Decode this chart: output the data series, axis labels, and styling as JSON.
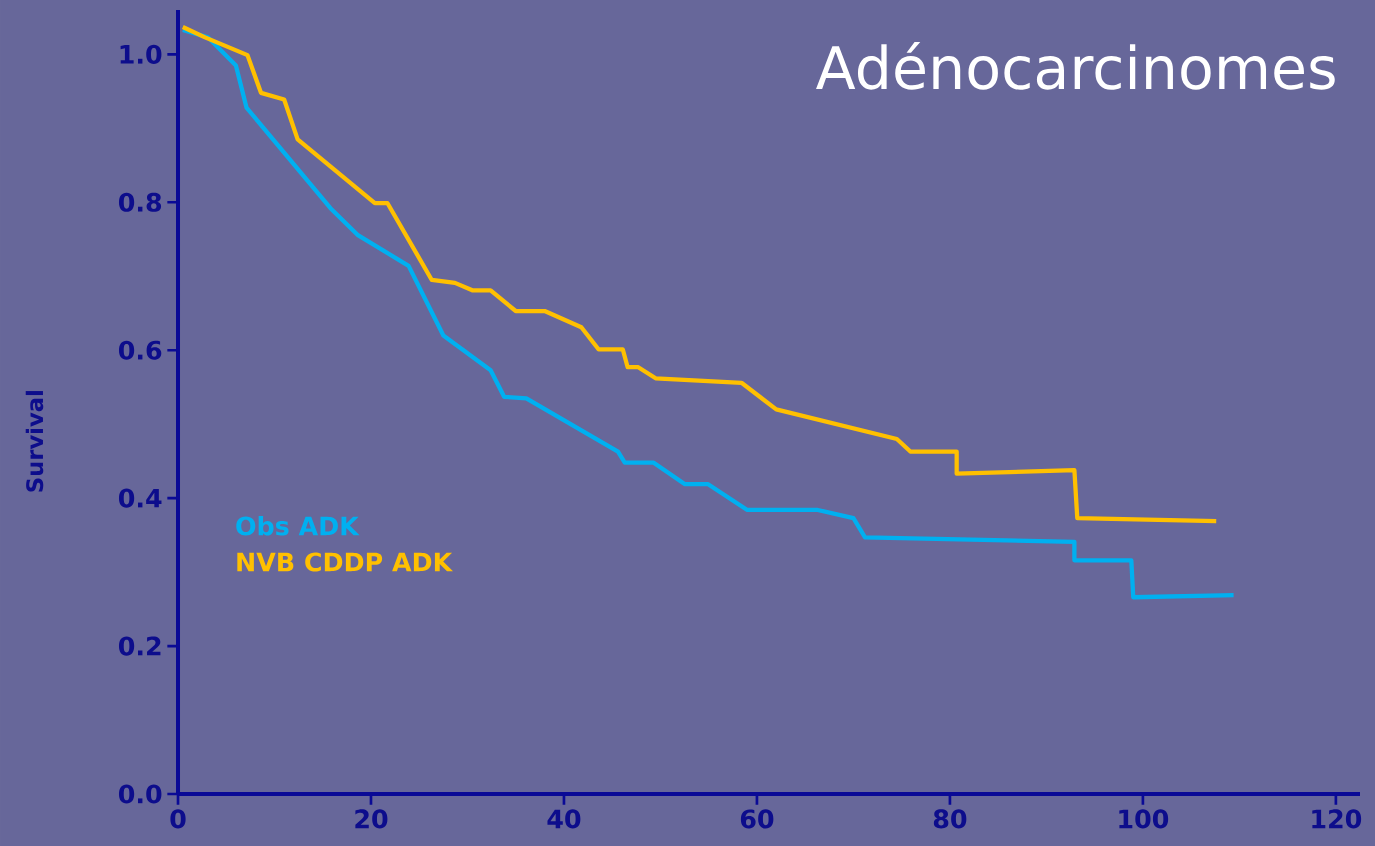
{
  "chart_data": {
    "type": "line",
    "title": "Adénocarcinomes",
    "ylabel": "Survival",
    "xlim": [
      0,
      122.5
    ],
    "ylim": [
      0,
      1.06
    ],
    "xticks": [
      0,
      20,
      40,
      60,
      80,
      100,
      120
    ],
    "yticks": [
      {
        "value": 0,
        "label": "0.0"
      },
      {
        "value": 0.2,
        "label": "0.2"
      },
      {
        "value": 0.4,
        "label": "0.4"
      },
      {
        "value": 0.6,
        "label": "0.6"
      },
      {
        "value": 0.8,
        "label": "0.8"
      },
      {
        "value": 1,
        "label": "1.0"
      }
    ],
    "legend": "bottom left",
    "series": [
      {
        "name": "Obs ADK",
        "color": "#00b0f0",
        "x": [
          0.5,
          3.1,
          6.0,
          7.1,
          15.8,
          18.6,
          23.9,
          27.5,
          32.4,
          33.8,
          36.1,
          45.6,
          46.3,
          49.3,
          52.5,
          54.9,
          59.0,
          66.3,
          70.0,
          71.2,
          92.9,
          92.9,
          98.8,
          99.0,
          109.4
        ],
        "values": [
          1.033,
          1.023,
          0.985,
          0.928,
          0.792,
          0.756,
          0.714,
          0.62,
          0.573,
          0.537,
          0.535,
          0.463,
          0.448,
          0.448,
          0.419,
          0.419,
          0.384,
          0.384,
          0.373,
          0.347,
          0.341,
          0.316,
          0.316,
          0.266,
          0.269
        ]
      },
      {
        "name": "NVB CDDP ADK",
        "color": "#ffc000",
        "x": [
          0.5,
          2.8,
          7.2,
          8.6,
          11.0,
          12.4,
          20.4,
          21.7,
          26.3,
          28.7,
          30.5,
          32.4,
          35.0,
          38.0,
          41.8,
          43.6,
          46.1,
          46.6,
          47.7,
          49.5,
          58.4,
          62.0,
          74.5,
          75.9,
          80.7,
          80.7,
          92.9,
          93.2,
          107.6
        ],
        "values": [
          1.037,
          1.023,
          0.999,
          0.948,
          0.939,
          0.885,
          0.799,
          0.799,
          0.695,
          0.691,
          0.681,
          0.681,
          0.653,
          0.653,
          0.631,
          0.601,
          0.601,
          0.577,
          0.577,
          0.562,
          0.556,
          0.52,
          0.48,
          0.463,
          0.463,
          0.433,
          0.438,
          0.373,
          0.369
        ]
      }
    ]
  }
}
